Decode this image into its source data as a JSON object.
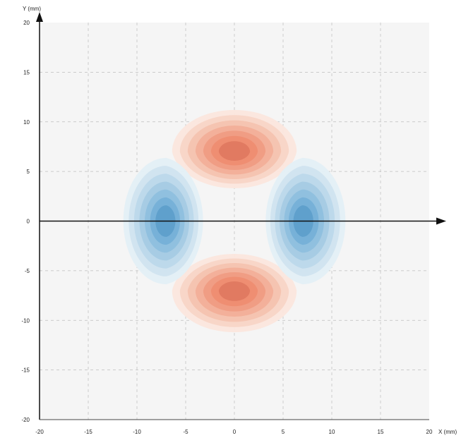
{
  "chart_data": {
    "type": "heatmap",
    "title": "",
    "xlabel": "X (mm)",
    "ylabel": "Y (mm)",
    "xlim": [
      -20,
      20
    ],
    "ylim": [
      -20,
      20
    ],
    "x_ticks": [
      -20,
      -15,
      -10,
      -5,
      0,
      5,
      10,
      15,
      20
    ],
    "y_ticks": [
      20,
      15,
      10,
      5,
      0,
      -5,
      -10,
      -15,
      -20
    ],
    "x_tick_labels": [
      "-20",
      "-15",
      "-10",
      "-5",
      "0",
      "5",
      "10",
      "15",
      "20"
    ],
    "y_tick_labels": [
      "20",
      "15",
      "10",
      "5",
      "0",
      "-5",
      "-10",
      "-15",
      "-20"
    ],
    "grid": true,
    "background_color": "#f5f5f5",
    "colors": {
      "positive": [
        "#fbe6de",
        "#f8d5c7",
        "#f5c3b0",
        "#f3b099",
        "#f09c83",
        "#ee8d72",
        "#e07a60"
      ],
      "negative": [
        "#e3eff6",
        "#d0e3f0",
        "#bcd8ea",
        "#a6cbe3",
        "#8fbfde",
        "#76b1d8",
        "#5e9fcb"
      ]
    },
    "lobes": [
      {
        "sign": "positive",
        "center": [
          0,
          7
        ],
        "x_radius": 6.8,
        "y_radius": 4.2
      },
      {
        "sign": "positive",
        "center": [
          0,
          -7
        ],
        "x_radius": 6.8,
        "y_radius": 4.2
      },
      {
        "sign": "negative",
        "center": [
          -7,
          0
        ],
        "x_radius": 4.4,
        "y_radius": 6.7
      },
      {
        "sign": "negative",
        "center": [
          7,
          0
        ],
        "x_radius": 4.4,
        "y_radius": 6.7
      }
    ]
  }
}
